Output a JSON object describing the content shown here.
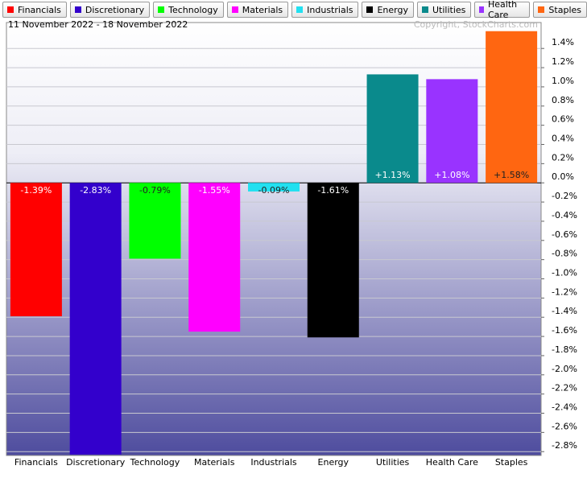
{
  "chart_data": {
    "type": "bar",
    "subtitle": "11 November 2022 - 18 November 2022",
    "annotation": "Copyright, StockCharts.com",
    "categories": [
      "Financials",
      "Discretionary",
      "Technology",
      "Materials",
      "Industrials",
      "Energy",
      "Utilities",
      "Health Care",
      "Staples"
    ],
    "values": [
      -1.39,
      -2.83,
      -0.79,
      -1.55,
      -0.09,
      -1.61,
      1.13,
      1.08,
      1.58
    ],
    "value_labels": [
      "-1.39%",
      "-2.83%",
      "-0.79%",
      "-1.55%",
      "-0.09%",
      "-1.61%",
      "+1.13%",
      "+1.08%",
      "+1.58%"
    ],
    "colors": [
      "#ff0000",
      "#3300cc",
      "#00ff00",
      "#ff00ff",
      "#22e0f0",
      "#000000",
      "#0a8a8c",
      "#9933ff",
      "#ff6611"
    ],
    "ylim": [
      -2.84,
      1.67
    ],
    "yticks": [
      {
        "value": 1.4,
        "label": "1.4%"
      },
      {
        "value": 1.2,
        "label": "1.2%"
      },
      {
        "value": 1.0,
        "label": "1.0%"
      },
      {
        "value": 0.8,
        "label": "0.8%"
      },
      {
        "value": 0.6,
        "label": "0.6%"
      },
      {
        "value": 0.4,
        "label": "0.4%"
      },
      {
        "value": 0.2,
        "label": "0.2%"
      },
      {
        "value": 0.0,
        "label": "0.0%"
      },
      {
        "value": -0.2,
        "label": "-0.2%"
      },
      {
        "value": -0.4,
        "label": "-0.4%"
      },
      {
        "value": -0.6,
        "label": "-0.6%"
      },
      {
        "value": -0.8,
        "label": "-0.8%"
      },
      {
        "value": -1.0,
        "label": "-1.0%"
      },
      {
        "value": -1.2,
        "label": "-1.2%"
      },
      {
        "value": -1.4,
        "label": "-1.4%"
      },
      {
        "value": -1.6,
        "label": "-1.6%"
      },
      {
        "value": -1.8,
        "label": "-1.8%"
      },
      {
        "value": -2.0,
        "label": "-2.0%"
      },
      {
        "value": -2.2,
        "label": "-2.2%"
      },
      {
        "value": -2.4,
        "label": "-2.4%"
      },
      {
        "value": -2.6,
        "label": "-2.6%"
      },
      {
        "value": -2.8,
        "label": "-2.8%"
      }
    ],
    "grid": true
  }
}
